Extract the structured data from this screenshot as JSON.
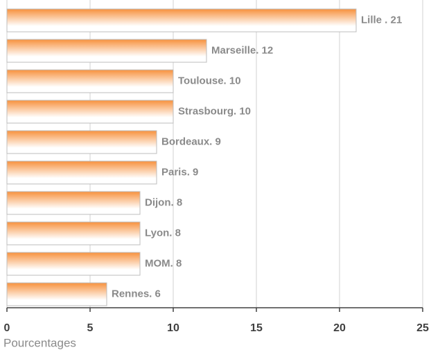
{
  "chart_data": {
    "type": "bar",
    "orientation": "horizontal",
    "values": [
      21,
      12,
      10,
      10,
      9,
      9,
      8,
      8,
      8,
      6
    ],
    "value_labels": [
      "Lille . 21",
      "Marseille. 12",
      "Toulouse. 10",
      "Strasbourg. 10",
      "Bordeaux. 9",
      "Paris. 9",
      "Dijon. 8",
      "Lyon. 8",
      "MOM. 8",
      "Rennes. 6"
    ],
    "color": "#f7913d",
    "xlabel": "Pourcentages",
    "xlim": [
      0,
      25
    ],
    "xticks": [
      0,
      5,
      10,
      15,
      20,
      25
    ],
    "grid": true
  }
}
